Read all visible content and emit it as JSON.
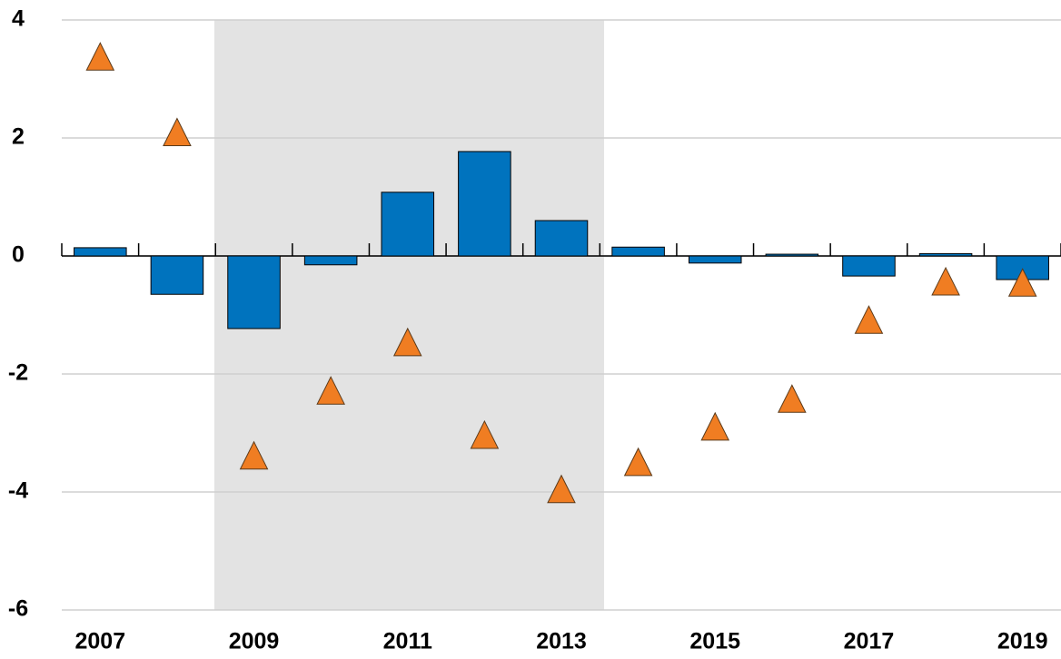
{
  "chart_data": {
    "type": "bar",
    "categories": [
      "2007",
      null,
      "2009",
      null,
      "2011",
      null,
      "2013",
      null,
      "2015",
      null,
      "2017",
      null,
      "2019"
    ],
    "series": [
      {
        "type": "bar",
        "color": "#0073be",
        "values": [
          0.14,
          -0.65,
          -1.23,
          -0.15,
          1.08,
          1.77,
          0.6,
          0.15,
          -0.12,
          0.03,
          -0.34,
          0.04,
          -0.4
        ]
      },
      {
        "type": "scatter",
        "color": "#f07d22",
        "values": [
          3.38,
          2.1,
          -3.38,
          -2.28,
          -1.46,
          -3.03,
          -3.95,
          -3.49,
          -2.89,
          -2.42,
          -1.08,
          -0.43,
          -0.45
        ]
      }
    ],
    "ylim": [
      -6,
      4
    ],
    "yticks": [
      -6,
      -4,
      -2,
      0,
      2,
      4
    ],
    "grid": true
  }
}
